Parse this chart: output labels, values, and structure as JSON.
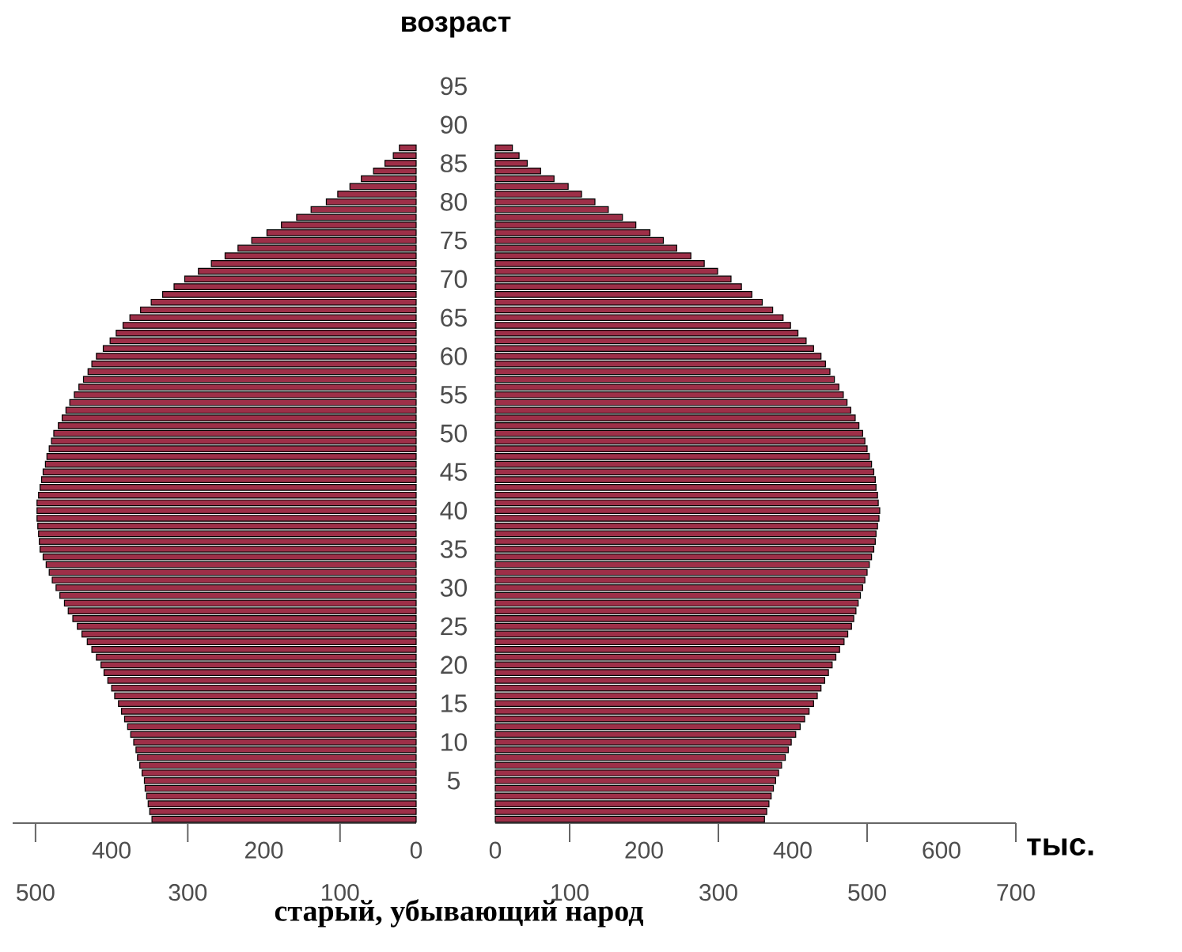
{
  "chart_data": [
    {
      "type": "bar",
      "orientation": "horizontal",
      "title": "возраст",
      "annotations": [
        "старый, убывающий народ"
      ],
      "tick_labels": "x",
      "color": "#9e2f48",
      "categories": [
        "95",
        null,
        null,
        null,
        null,
        "90",
        null,
        null,
        null,
        null,
        "85",
        null,
        null,
        null,
        null,
        "80",
        null,
        null,
        null,
        null,
        "75",
        null,
        null,
        null,
        null,
        "70",
        null,
        null,
        null,
        null,
        "65",
        null,
        null,
        null,
        null,
        "60",
        null,
        null,
        null,
        null,
        "55",
        null,
        null,
        null,
        null,
        "50",
        null,
        null,
        null,
        null,
        "45",
        null,
        null,
        null,
        null,
        "40",
        null,
        null,
        null,
        null,
        "35",
        null,
        null,
        null,
        null,
        "30",
        null,
        null,
        null,
        null,
        "25",
        null,
        null,
        null,
        null,
        "20",
        null,
        null,
        null,
        null,
        "15",
        null,
        null,
        null,
        null,
        "10",
        null,
        null,
        null,
        null,
        "5",
        null,
        null,
        null,
        null,
        null
      ],
      "values": [
        null,
        null,
        null,
        null,
        null,
        null,
        null,
        null,
        22,
        30,
        41,
        56,
        72,
        87,
        103,
        118,
        138,
        157,
        177,
        196,
        216,
        234,
        251,
        269,
        286,
        304,
        318,
        333,
        348,
        362,
        376,
        385,
        394,
        402,
        411,
        420,
        426,
        431,
        437,
        443,
        449,
        455,
        460,
        465,
        470,
        476,
        479,
        482,
        485,
        487,
        490,
        492,
        494,
        496,
        498,
        498,
        498,
        497,
        496,
        495,
        494,
        490,
        486,
        482,
        478,
        473,
        468,
        462,
        457,
        451,
        445,
        439,
        432,
        426,
        420,
        414,
        410,
        405,
        400,
        396,
        391,
        387,
        383,
        379,
        375,
        371,
        368,
        366,
        363,
        360,
        357,
        356,
        354,
        352,
        350,
        347
      ],
      "xlim": [
        530,
        0
      ],
      "xticks": [
        0,
        200,
        400
      ],
      "x2lim": [
        530,
        0
      ],
      "x2ticks": [
        100,
        300,
        500
      ]
    },
    {
      "type": "bar",
      "orientation": "horizontal",
      "xlabel": "тыс.",
      "color": "#9e2f48",
      "categories": [
        "95",
        null,
        null,
        null,
        null,
        "90",
        null,
        null,
        null,
        null,
        "85",
        null,
        null,
        null,
        null,
        "80",
        null,
        null,
        null,
        null,
        "75",
        null,
        null,
        null,
        null,
        "70",
        null,
        null,
        null,
        null,
        "65",
        null,
        null,
        null,
        null,
        "60",
        null,
        null,
        null,
        null,
        "55",
        null,
        null,
        null,
        null,
        "50",
        null,
        null,
        null,
        null,
        "45",
        null,
        null,
        null,
        null,
        "40",
        null,
        null,
        null,
        null,
        "35",
        null,
        null,
        null,
        null,
        "30",
        null,
        null,
        null,
        null,
        "25",
        null,
        null,
        null,
        null,
        "20",
        null,
        null,
        null,
        null,
        "15",
        null,
        null,
        null,
        null,
        "10",
        null,
        null,
        null,
        null,
        "5",
        null,
        null,
        null,
        null,
        null
      ],
      "values": [
        null,
        null,
        null,
        null,
        null,
        null,
        null,
        null,
        23,
        32,
        43,
        61,
        79,
        98,
        116,
        134,
        152,
        171,
        189,
        208,
        226,
        244,
        263,
        281,
        299,
        317,
        331,
        345,
        359,
        373,
        387,
        397,
        407,
        418,
        428,
        438,
        444,
        450,
        456,
        462,
        468,
        473,
        478,
        484,
        489,
        494,
        497,
        500,
        503,
        506,
        509,
        511,
        512,
        514,
        515,
        517,
        516,
        514,
        512,
        511,
        509,
        506,
        503,
        500,
        497,
        494,
        491,
        488,
        485,
        482,
        479,
        474,
        469,
        463,
        458,
        453,
        448,
        443,
        438,
        433,
        428,
        422,
        416,
        410,
        404,
        398,
        394,
        390,
        385,
        381,
        377,
        374,
        371,
        368,
        365,
        362
      ],
      "xlim": [
        0,
        700
      ],
      "xticks": [
        0,
        200,
        400,
        600
      ],
      "x2lim": [
        0,
        700
      ],
      "x2ticks": [
        100,
        300,
        500,
        700
      ]
    }
  ]
}
